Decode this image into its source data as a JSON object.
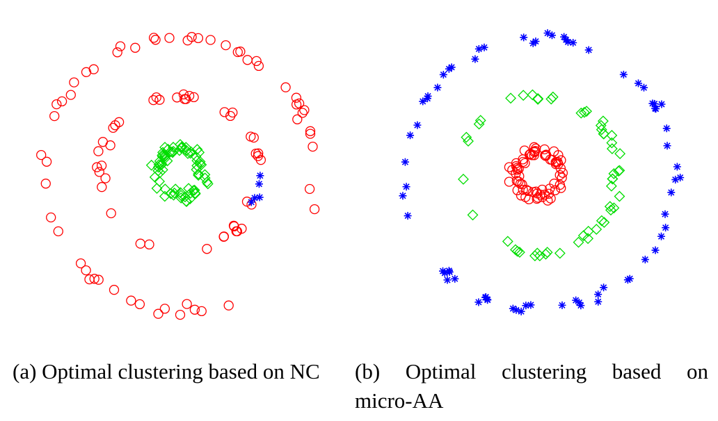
{
  "captions": {
    "a": "(a) Optimal clustering based on NC",
    "b_line1": [
      "(b)",
      "Optimal",
      "clustering",
      "based",
      "on"
    ],
    "b_line2": "micro-AA"
  },
  "colors": {
    "red": "#ff0000",
    "green": "#00dd00",
    "blue": "#0000ff"
  },
  "chart_data": [
    {
      "type": "scatter",
      "title": "",
      "xlim": [
        -1.1,
        1.1
      ],
      "ylim": [
        -1.1,
        1.1
      ],
      "grid": false,
      "legend": "none",
      "series": [
        {
          "marker": "circle",
          "color": "#ff0000",
          "radius": 0.98,
          "points": 55,
          "seed": 11,
          "spread": 0.03,
          "angle_range": [
            0,
            360
          ]
        },
        {
          "marker": "circle",
          "color": "#ff0000",
          "radius": 0.57,
          "points": 42,
          "seed": 23,
          "spread": 0.03,
          "angle_range": [
            0,
            338
          ]
        },
        {
          "marker": "diamond",
          "color": "#00dd00",
          "radius": 0.17,
          "points": 70,
          "seed": 37,
          "spread": 0.04,
          "angle_range": [
            0,
            360
          ]
        },
        {
          "marker": "star",
          "color": "#0000ff",
          "radius": 0.57,
          "points": 5,
          "seed": 41,
          "spread": 0.015,
          "angle_range": [
            338,
            360
          ]
        }
      ]
    },
    {
      "type": "scatter",
      "title": "",
      "xlim": [
        -1.1,
        1.1
      ],
      "ylim": [
        -1.1,
        1.1
      ],
      "grid": false,
      "legend": "none",
      "series": [
        {
          "marker": "star",
          "color": "#0000ff",
          "radius": 0.98,
          "points": 70,
          "seed": 53,
          "spread": 0.03,
          "angle_range": [
            0,
            360
          ]
        },
        {
          "marker": "diamond",
          "color": "#00dd00",
          "radius": 0.57,
          "points": 52,
          "seed": 67,
          "spread": 0.03,
          "angle_range": [
            0,
            360
          ]
        },
        {
          "marker": "circle",
          "color": "#ff0000",
          "radius": 0.17,
          "points": 70,
          "seed": 79,
          "spread": 0.04,
          "angle_range": [
            0,
            360
          ]
        }
      ]
    }
  ]
}
